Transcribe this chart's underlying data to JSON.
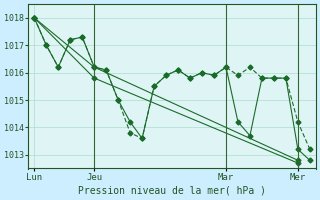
{
  "background_color": "#cceeff",
  "plot_bg_color": "#dff5f5",
  "grid_color": "#aaddcc",
  "line_color": "#1a6b2a",
  "title": "Pression niveau de la mer( hPa )",
  "ylim": [
    1012.5,
    1018.5
  ],
  "yticks": [
    1013,
    1014,
    1015,
    1016,
    1017,
    1018
  ],
  "xtick_labels": [
    "Lun",
    "Jeu",
    "Mar",
    "Mer"
  ],
  "xtick_positions": [
    0,
    5,
    16,
    22
  ],
  "series1": [
    1018.0,
    1017.0,
    1016.2,
    1017.2,
    1017.3,
    1016.2,
    1016.1,
    1015.0,
    1014.2,
    1013.6,
    1015.5,
    1015.9,
    1016.1,
    1015.8,
    1016.0,
    1015.9,
    1016.2,
    1014.2,
    1013.7,
    1015.8,
    1015.8,
    1015.8,
    1013.2,
    1012.8
  ],
  "series2": [
    1018.0,
    1017.0,
    1016.2,
    1017.2,
    1017.3,
    1016.2,
    1016.1,
    1015.0,
    1013.8,
    1013.6,
    1015.5,
    1015.9,
    1016.1,
    1015.8,
    1016.0,
    1015.9,
    1016.2,
    1015.9,
    1016.2,
    1015.8,
    1015.8,
    1015.8,
    1014.2,
    1013.2
  ],
  "series3_x": [
    0,
    5,
    22
  ],
  "series3_y": [
    1018.0,
    1016.2,
    1012.8
  ],
  "series4_x": [
    0,
    5,
    22
  ],
  "series4_y": [
    1018.0,
    1015.8,
    1012.7
  ],
  "n_points": 24
}
